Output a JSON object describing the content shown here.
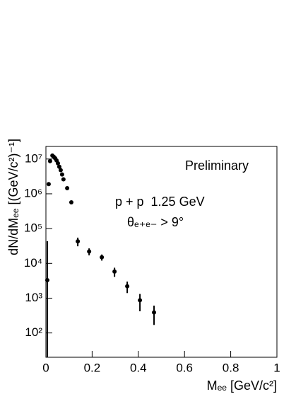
{
  "chart_data": {
    "type": "scatter",
    "yscale": "log",
    "xlabel": "Mₑₑ [GeV/c²]",
    "ylabel": "dN/dMₑₑ [(GeV/c²)⁻¹]",
    "annotations": [
      "Preliminary",
      "p + p  1.25 GeV",
      "θₑ₊ₑ₋ > 9°"
    ],
    "x": [
      0.006,
      0.012,
      0.018,
      0.028,
      0.034,
      0.04,
      0.046,
      0.052,
      0.058,
      0.064,
      0.07,
      0.076,
      0.092,
      0.11,
      0.138,
      0.187,
      0.242,
      0.297,
      0.352,
      0.407,
      0.468
    ],
    "series": [
      {
        "color": "#000000",
        "values": [
          3300,
          1900000,
          8700000,
          12600000,
          11500000,
          10500000,
          9100000,
          7500000,
          6000000,
          4800000,
          3600000,
          2600000,
          1450000,
          570000,
          43000,
          22000,
          15000,
          5800,
          2200,
          870,
          390
        ],
        "errors": [
          40000,
          0,
          0,
          0,
          0,
          0,
          0,
          0,
          0,
          0,
          0,
          0,
          0,
          0,
          12000,
          5000,
          3000,
          1700,
          800,
          450,
          220
        ]
      }
    ],
    "xlim": [
      0,
      1
    ],
    "xticks": [
      0,
      0.2,
      0.4,
      0.6,
      0.8,
      1
    ],
    "ylim": [
      20,
      23000000
    ],
    "yticks": [
      {
        "value": 100,
        "label": "10²"
      },
      {
        "value": 1000,
        "label": "10³"
      },
      {
        "value": 10000,
        "label": "10⁴"
      },
      {
        "value": 100000,
        "label": "10⁵"
      },
      {
        "value": 1000000,
        "label": "10⁶"
      },
      {
        "value": 10000000,
        "label": "10⁷"
      }
    ]
  }
}
